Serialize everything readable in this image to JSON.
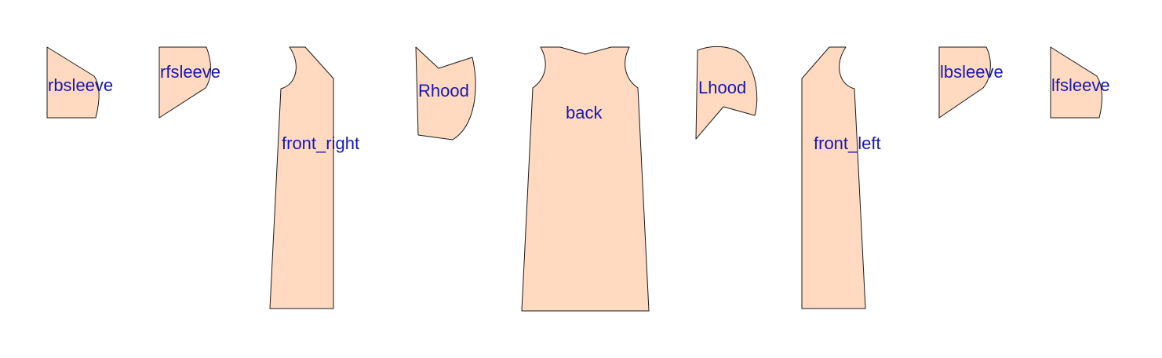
{
  "colors": {
    "piece_fill": "#FFDAC1",
    "piece_stroke": "#1a1a1a",
    "label_color": "#1717B0",
    "background": "#ffffff"
  },
  "pieces": [
    {
      "id": "rbsleeve",
      "label": "rbsleeve"
    },
    {
      "id": "rfsleeve",
      "label": "rfsleeve"
    },
    {
      "id": "front_right",
      "label": "front_right"
    },
    {
      "id": "rhood",
      "label": "Rhood"
    },
    {
      "id": "back",
      "label": "back"
    },
    {
      "id": "lhood",
      "label": "Lhood"
    },
    {
      "id": "front_left",
      "label": "front_left"
    },
    {
      "id": "lbsleeve",
      "label": "lbsleeve"
    },
    {
      "id": "lfsleeve",
      "label": "lfsleeve"
    }
  ]
}
